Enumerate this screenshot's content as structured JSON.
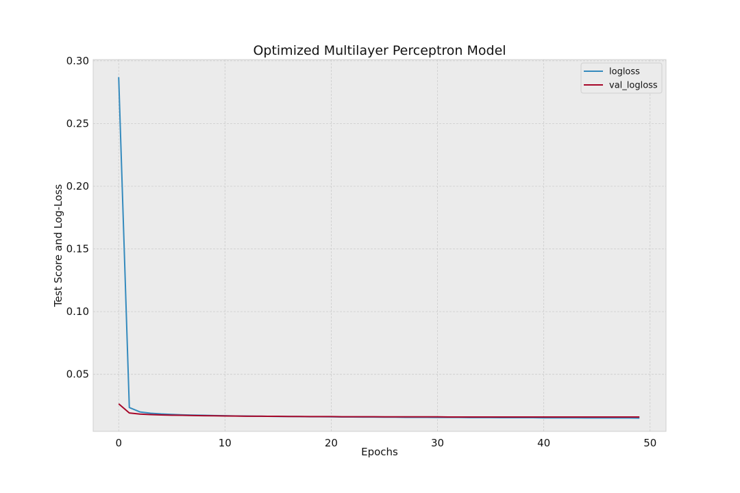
{
  "chart_data": {
    "type": "line",
    "title": "Optimized Multilayer Perceptron Model",
    "xlabel": "Epochs",
    "ylabel": "Test Score and Log-Loss",
    "xlim": [
      -2.4,
      51.5
    ],
    "ylim": [
      0.0045,
      0.301
    ],
    "xticks": [
      0,
      10,
      20,
      30,
      40,
      50
    ],
    "yticks": [
      0.05,
      0.1,
      0.15,
      0.2,
      0.25,
      0.3
    ],
    "xtick_labels": [
      "0",
      "10",
      "20",
      "30",
      "40",
      "50"
    ],
    "ytick_labels": [
      "0.05",
      "0.10",
      "0.15",
      "0.20",
      "0.25",
      "0.30"
    ],
    "grid": true,
    "legend_position": "top-right",
    "series": [
      {
        "name": "logloss",
        "color": "#348abd",
        "x": [
          0,
          1,
          2,
          3,
          4,
          5,
          6,
          7,
          8,
          9,
          10,
          11,
          12,
          13,
          14,
          15,
          16,
          17,
          18,
          19,
          20,
          21,
          22,
          23,
          24,
          25,
          26,
          27,
          28,
          29,
          30,
          31,
          32,
          33,
          34,
          35,
          36,
          37,
          38,
          39,
          40,
          41,
          42,
          43,
          44,
          45,
          46,
          47,
          48,
          49
        ],
        "y": [
          0.287,
          0.0235,
          0.02,
          0.019,
          0.0184,
          0.018,
          0.0177,
          0.0175,
          0.0173,
          0.0171,
          0.017,
          0.0168,
          0.0167,
          0.0166,
          0.0165,
          0.0164,
          0.0164,
          0.0163,
          0.0162,
          0.0162,
          0.0161,
          0.016,
          0.016,
          0.0159,
          0.0159,
          0.0158,
          0.0158,
          0.0157,
          0.0157,
          0.0157,
          0.0156,
          0.0156,
          0.0156,
          0.0155,
          0.0155,
          0.0155,
          0.0154,
          0.0154,
          0.0154,
          0.0154,
          0.0153,
          0.0153,
          0.0153,
          0.0153,
          0.0152,
          0.0152,
          0.0152,
          0.0152,
          0.0152,
          0.0151
        ]
      },
      {
        "name": "val_logloss",
        "color": "#a60628",
        "x": [
          0,
          1,
          2,
          3,
          4,
          5,
          6,
          7,
          8,
          9,
          10,
          11,
          12,
          13,
          14,
          15,
          16,
          17,
          18,
          19,
          20,
          21,
          22,
          23,
          24,
          25,
          26,
          27,
          28,
          29,
          30,
          31,
          32,
          33,
          34,
          35,
          36,
          37,
          38,
          39,
          40,
          41,
          42,
          43,
          44,
          45,
          46,
          47,
          48,
          49
        ],
        "y": [
          0.0265,
          0.0192,
          0.0183,
          0.0179,
          0.0176,
          0.0174,
          0.0173,
          0.0171,
          0.017,
          0.0169,
          0.0168,
          0.0167,
          0.0166,
          0.0166,
          0.0165,
          0.0165,
          0.0164,
          0.0164,
          0.0163,
          0.0163,
          0.0163,
          0.0162,
          0.0162,
          0.0162,
          0.0162,
          0.0161,
          0.0161,
          0.0161,
          0.0161,
          0.0161,
          0.0161,
          0.016,
          0.016,
          0.016,
          0.016,
          0.016,
          0.016,
          0.016,
          0.016,
          0.016,
          0.016,
          0.016,
          0.016,
          0.016,
          0.016,
          0.016,
          0.016,
          0.016,
          0.016,
          0.016
        ]
      }
    ]
  }
}
